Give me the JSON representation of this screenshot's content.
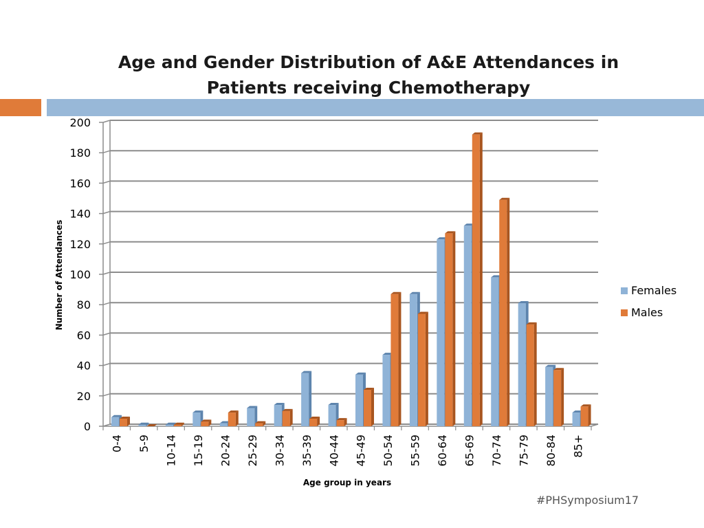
{
  "slide": {
    "title": "Age and Gender Distribution of A&E Attendances in Patients receiving Chemotherapy",
    "footer": "#PHSymposium17"
  },
  "colors": {
    "females": "#8fb3d7",
    "females_dark": "#5d84ad",
    "males": "#e07b39",
    "males_dark": "#a8551f",
    "grid": "#8c8c8c",
    "accent_orange": "#e07b39",
    "accent_blue": "#98b8d8"
  },
  "chart_data": {
    "type": "bar",
    "title": "Age and Gender Distribution of A&E Attendances in Patients receiving Chemotherapy",
    "xlabel": "Age group in years",
    "ylabel": "Number of Attendances",
    "ylim": [
      0,
      200
    ],
    "yticks": [
      0,
      20,
      40,
      60,
      80,
      100,
      120,
      140,
      160,
      180,
      200
    ],
    "grid": true,
    "legend_position": "right",
    "categories": [
      "0-4",
      "5-9",
      "10-14",
      "15-19",
      "20-24",
      "25-29",
      "30-34",
      "35-39",
      "40-44",
      "45-49",
      "50-54",
      "55-59",
      "60-64",
      "65-69",
      "70-74",
      "75-79",
      "80-84",
      "85+"
    ],
    "series": [
      {
        "name": "Females",
        "values": [
          6,
          1,
          1,
          9,
          2,
          12,
          14,
          35,
          14,
          34,
          47,
          87,
          123,
          132,
          98,
          81,
          39,
          9
        ]
      },
      {
        "name": "Males",
        "values": [
          5,
          0,
          1,
          3,
          9,
          2,
          10,
          5,
          4,
          24,
          87,
          74,
          127,
          192,
          149,
          67,
          37,
          13
        ]
      }
    ]
  }
}
